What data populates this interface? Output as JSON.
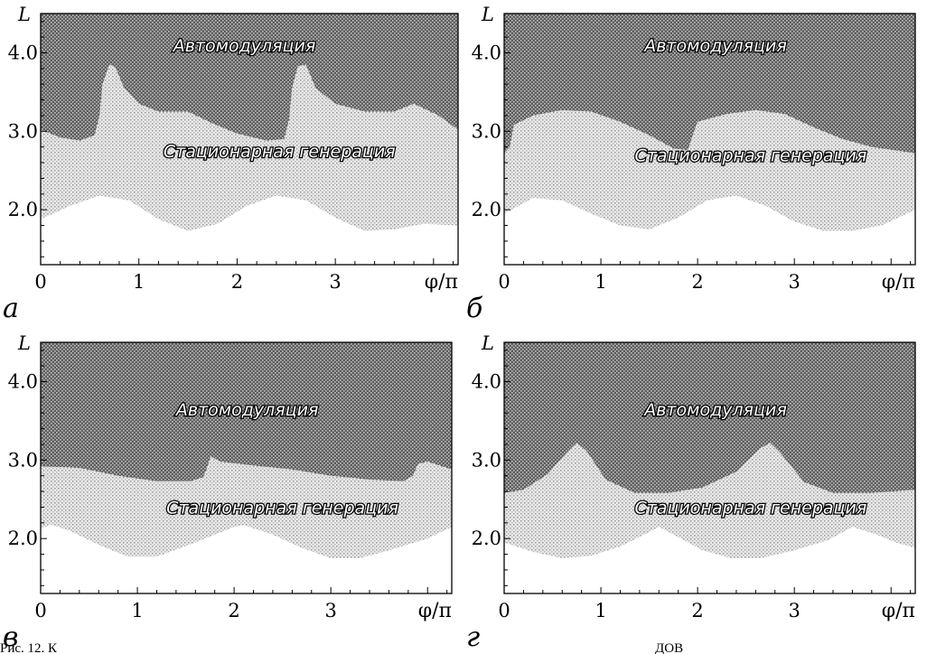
{
  "chart_data": [
    {
      "panel": "а",
      "type": "area",
      "xlabel": "φ/π",
      "ylabel": "L",
      "xlim": [
        0,
        4.25
      ],
      "ylim": [
        1.3,
        4.5
      ],
      "xticks": [
        "0",
        "1",
        "2",
        "3"
      ],
      "yticks": [
        "2.0",
        "3.0",
        "4.0"
      ],
      "regions": [
        {
          "name": "Автомодуляция",
          "label_at": [
            1.35,
            4.1
          ]
        },
        {
          "name": "Стационарная генерация",
          "label_at": [
            1.25,
            2.75
          ]
        }
      ],
      "boundary_upper": [
        [
          0,
          3.02
        ],
        [
          0.2,
          2.92
        ],
        [
          0.4,
          2.88
        ],
        [
          0.55,
          2.95
        ],
        [
          0.6,
          3.2
        ],
        [
          0.63,
          3.6
        ],
        [
          0.7,
          3.85
        ],
        [
          0.76,
          3.82
        ],
        [
          0.85,
          3.55
        ],
        [
          1.0,
          3.35
        ],
        [
          1.2,
          3.25
        ],
        [
          1.5,
          3.25
        ],
        [
          1.75,
          3.1
        ],
        [
          2.0,
          2.97
        ],
        [
          2.3,
          2.88
        ],
        [
          2.48,
          2.9
        ],
        [
          2.53,
          3.15
        ],
        [
          2.56,
          3.55
        ],
        [
          2.62,
          3.83
        ],
        [
          2.7,
          3.85
        ],
        [
          2.8,
          3.55
        ],
        [
          3.0,
          3.35
        ],
        [
          3.3,
          3.25
        ],
        [
          3.6,
          3.25
        ],
        [
          3.8,
          3.35
        ],
        [
          4.05,
          3.2
        ],
        [
          4.25,
          3.02
        ]
      ],
      "boundary_lower": [
        [
          0,
          1.88
        ],
        [
          0.3,
          2.05
        ],
        [
          0.6,
          2.18
        ],
        [
          0.9,
          2.12
        ],
        [
          1.2,
          1.88
        ],
        [
          1.5,
          1.73
        ],
        [
          1.8,
          1.82
        ],
        [
          2.1,
          2.05
        ],
        [
          2.4,
          2.18
        ],
        [
          2.7,
          2.12
        ],
        [
          3.0,
          1.9
        ],
        [
          3.3,
          1.73
        ],
        [
          3.6,
          1.75
        ],
        [
          3.9,
          1.82
        ],
        [
          4.25,
          1.8
        ]
      ]
    },
    {
      "panel": "б",
      "type": "area",
      "xlabel": "φ/π",
      "ylabel": "L",
      "xlim": [
        0,
        4.25
      ],
      "ylim": [
        1.3,
        4.5
      ],
      "xticks": [
        "0",
        "1",
        "2",
        "3"
      ],
      "yticks": [
        "2.0",
        "3.0",
        "4.0"
      ],
      "regions": [
        {
          "name": "Автомодуляция",
          "label_at": [
            1.45,
            4.1
          ]
        },
        {
          "name": "Стационарная генерация",
          "label_at": [
            1.35,
            2.7
          ]
        }
      ],
      "boundary_upper": [
        [
          0,
          2.72
        ],
        [
          0.06,
          2.8
        ],
        [
          0.1,
          3.08
        ],
        [
          0.3,
          3.2
        ],
        [
          0.6,
          3.27
        ],
        [
          0.9,
          3.25
        ],
        [
          1.2,
          3.12
        ],
        [
          1.5,
          2.95
        ],
        [
          1.75,
          2.78
        ],
        [
          1.9,
          2.76
        ],
        [
          1.95,
          2.95
        ],
        [
          2.0,
          3.12
        ],
        [
          2.3,
          3.22
        ],
        [
          2.6,
          3.27
        ],
        [
          2.9,
          3.22
        ],
        [
          3.2,
          3.05
        ],
        [
          3.5,
          2.9
        ],
        [
          3.8,
          2.8
        ],
        [
          4.25,
          2.72
        ]
      ],
      "boundary_lower": [
        [
          0,
          1.95
        ],
        [
          0.3,
          2.15
        ],
        [
          0.6,
          2.12
        ],
        [
          0.9,
          1.95
        ],
        [
          1.2,
          1.8
        ],
        [
          1.5,
          1.75
        ],
        [
          1.8,
          1.9
        ],
        [
          2.1,
          2.12
        ],
        [
          2.4,
          2.18
        ],
        [
          2.7,
          2.05
        ],
        [
          3.0,
          1.85
        ],
        [
          3.3,
          1.73
        ],
        [
          3.6,
          1.73
        ],
        [
          3.9,
          1.8
        ],
        [
          4.25,
          2.0
        ]
      ]
    },
    {
      "panel": "в",
      "type": "area",
      "xlabel": "φ/π",
      "ylabel": "L",
      "xlim": [
        0,
        4.25
      ],
      "ylim": [
        1.3,
        4.5
      ],
      "xticks": [
        "0",
        "1",
        "2",
        "3"
      ],
      "yticks": [
        "2.0",
        "3.0",
        "4.0"
      ],
      "regions": [
        {
          "name": "Автомодуляция",
          "label_at": [
            1.4,
            3.65
          ]
        },
        {
          "name": "Стационарная генерация",
          "label_at": [
            1.3,
            2.4
          ]
        }
      ],
      "boundary_upper": [
        [
          0,
          2.92
        ],
        [
          0.4,
          2.9
        ],
        [
          0.8,
          2.8
        ],
        [
          1.2,
          2.73
        ],
        [
          1.55,
          2.73
        ],
        [
          1.68,
          2.78
        ],
        [
          1.72,
          2.9
        ],
        [
          1.76,
          3.05
        ],
        [
          1.85,
          2.98
        ],
        [
          2.2,
          2.93
        ],
        [
          2.6,
          2.88
        ],
        [
          3.0,
          2.8
        ],
        [
          3.4,
          2.75
        ],
        [
          3.75,
          2.73
        ],
        [
          3.85,
          2.8
        ],
        [
          3.9,
          2.95
        ],
        [
          4.0,
          2.98
        ],
        [
          4.25,
          2.88
        ]
      ],
      "boundary_lower": [
        [
          0,
          2.12
        ],
        [
          0.1,
          2.18
        ],
        [
          0.3,
          2.1
        ],
        [
          0.6,
          1.92
        ],
        [
          0.9,
          1.77
        ],
        [
          1.2,
          1.77
        ],
        [
          1.6,
          1.95
        ],
        [
          2.0,
          2.15
        ],
        [
          2.1,
          2.17
        ],
        [
          2.4,
          2.05
        ],
        [
          2.7,
          1.88
        ],
        [
          3.0,
          1.75
        ],
        [
          3.3,
          1.75
        ],
        [
          3.6,
          1.85
        ],
        [
          4.0,
          2.0
        ],
        [
          4.25,
          2.15
        ]
      ]
    },
    {
      "panel": "г",
      "type": "area",
      "xlabel": "φ/π",
      "ylabel": "L",
      "xlim": [
        0,
        4.25
      ],
      "ylim": [
        1.3,
        4.5
      ],
      "xticks": [
        "0",
        "1",
        "2",
        "3"
      ],
      "yticks": [
        "2.0",
        "3.0",
        "4.0"
      ],
      "regions": [
        {
          "name": "Автомодуляция",
          "label_at": [
            1.45,
            3.65
          ]
        },
        {
          "name": "Стационарная генерация",
          "label_at": [
            1.35,
            2.4
          ]
        }
      ],
      "boundary_upper": [
        [
          0,
          2.58
        ],
        [
          0.2,
          2.62
        ],
        [
          0.45,
          2.82
        ],
        [
          0.65,
          3.1
        ],
        [
          0.75,
          3.22
        ],
        [
          0.85,
          3.12
        ],
        [
          1.05,
          2.75
        ],
        [
          1.35,
          2.58
        ],
        [
          1.7,
          2.58
        ],
        [
          2.05,
          2.65
        ],
        [
          2.4,
          2.85
        ],
        [
          2.65,
          3.15
        ],
        [
          2.75,
          3.22
        ],
        [
          2.85,
          3.1
        ],
        [
          3.1,
          2.72
        ],
        [
          3.4,
          2.58
        ],
        [
          3.8,
          2.58
        ],
        [
          4.25,
          2.62
        ]
      ],
      "boundary_lower": [
        [
          0,
          1.95
        ],
        [
          0.3,
          1.83
        ],
        [
          0.6,
          1.75
        ],
        [
          0.9,
          1.78
        ],
        [
          1.2,
          1.9
        ],
        [
          1.45,
          2.05
        ],
        [
          1.6,
          2.15
        ],
        [
          1.75,
          2.05
        ],
        [
          2.05,
          1.85
        ],
        [
          2.35,
          1.75
        ],
        [
          2.65,
          1.75
        ],
        [
          3.0,
          1.85
        ],
        [
          3.35,
          1.98
        ],
        [
          3.6,
          2.15
        ],
        [
          3.85,
          2.05
        ],
        [
          4.05,
          1.95
        ],
        [
          4.25,
          1.88
        ]
      ]
    }
  ],
  "caption_fragments": [
    "Рис. 12. К",
    "ДОВ"
  ]
}
